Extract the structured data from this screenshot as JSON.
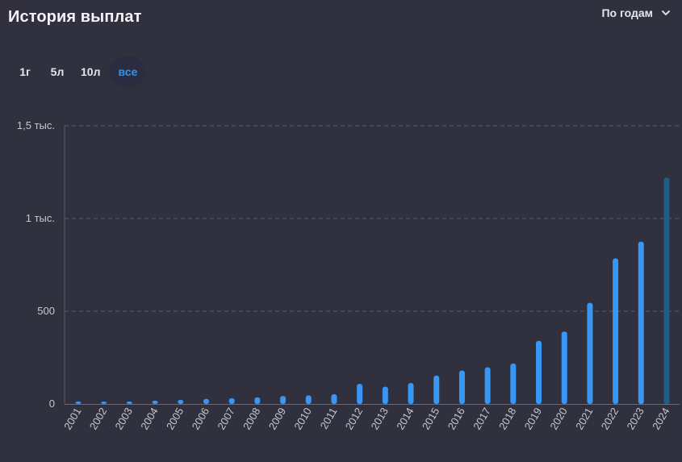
{
  "header": {
    "title": "История выплат",
    "period_label": "По годам"
  },
  "range_tabs": [
    {
      "label": "1г",
      "active": false
    },
    {
      "label": "5л",
      "active": false
    },
    {
      "label": "10л",
      "active": false
    },
    {
      "label": "все",
      "active": true
    }
  ],
  "colors": {
    "background": "#30303e",
    "bar": "#3896f4",
    "bar_highlight": "#1e5f86",
    "active_tab_text": "#2f94f0",
    "grid": "#5a5a68"
  },
  "chart_data": {
    "type": "bar",
    "categories": [
      "2001",
      "2002",
      "2003",
      "2004",
      "2005",
      "2006",
      "2007",
      "2008",
      "2009",
      "2010",
      "2011",
      "2012",
      "2013",
      "2014",
      "2015",
      "2016",
      "2017",
      "2018",
      "2019",
      "2020",
      "2021",
      "2022",
      "2023",
      "2024"
    ],
    "values": [
      5,
      10,
      13,
      18,
      22,
      27,
      31,
      36,
      43,
      46,
      52,
      108,
      93,
      113,
      153,
      180,
      198,
      218,
      340,
      390,
      545,
      785,
      875,
      1220
    ],
    "ylim": [
      0,
      1500
    ],
    "y_ticks": [
      {
        "value": 0,
        "label": "0"
      },
      {
        "value": 500,
        "label": "500"
      },
      {
        "value": 1000,
        "label": "1 тыс."
      },
      {
        "value": 1500,
        "label": "1,5 тыс."
      }
    ],
    "highlighted_category": "2024",
    "grid": true,
    "grid_style": "dashed horizontal",
    "x_label_rotation": "-60deg"
  }
}
